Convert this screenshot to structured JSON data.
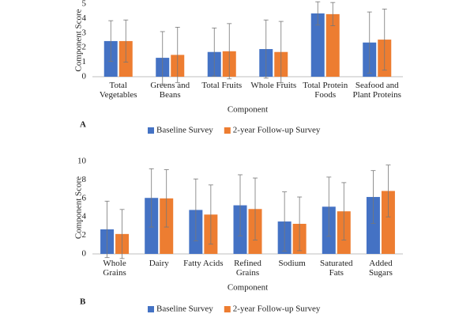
{
  "chart_data": [
    {
      "type": "bar",
      "label": "A",
      "x_label": "Component",
      "y_label": "Component Score",
      "categories": [
        "Total Vegetables",
        "Greens and Beans",
        "Total Fruits",
        "Whole Fruits",
        "Total Protein Foods",
        "Seafood and Plant Proteins"
      ],
      "series": [
        {
          "name": "Baseline Survey",
          "color": "#4472c4",
          "values": [
            2.45,
            1.3,
            1.7,
            1.9,
            4.35,
            2.35
          ],
          "errors": [
            1.4,
            1.8,
            1.65,
            2.0,
            0.8,
            2.1
          ]
        },
        {
          "name": "2-year Follow-up Survey",
          "color": "#ed7d31",
          "values": [
            2.45,
            1.5,
            1.75,
            1.7,
            4.3,
            2.55
          ],
          "errors": [
            1.45,
            1.9,
            1.9,
            2.1,
            0.8,
            2.1
          ]
        }
      ],
      "ylim": [
        0,
        5
      ],
      "yticks": [
        0,
        1,
        2,
        3,
        4,
        5
      ],
      "grid": false
    },
    {
      "type": "bar",
      "label": "B",
      "x_label": "Component",
      "y_label": "Component Score",
      "categories": [
        "Whole Grains",
        "Dairy",
        "Fatty Acids",
        "Refined Grains",
        "Sodium",
        "Saturated Fats",
        "Added Sugars"
      ],
      "series": [
        {
          "name": "Baseline Survey",
          "color": "#4472c4",
          "values": [
            2.65,
            6.05,
            4.75,
            5.25,
            3.5,
            5.1,
            6.15
          ],
          "errors": [
            3.05,
            3.15,
            3.35,
            3.3,
            3.2,
            3.2,
            2.85
          ]
        },
        {
          "name": "2-year Follow-up Survey",
          "color": "#ed7d31",
          "values": [
            2.15,
            6.0,
            4.25,
            4.85,
            3.25,
            4.6,
            6.8
          ],
          "errors": [
            2.65,
            3.1,
            3.2,
            3.35,
            2.9,
            3.1,
            2.8
          ]
        }
      ],
      "ylim": [
        0,
        10
      ],
      "yticks": [
        0,
        2,
        4,
        6,
        8,
        10
      ],
      "grid": false
    }
  ]
}
